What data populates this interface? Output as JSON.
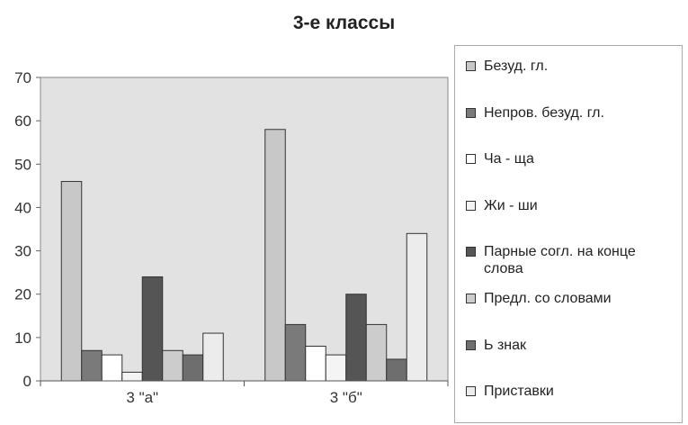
{
  "chart_data": {
    "type": "bar",
    "title": "3-е классы",
    "categories": [
      "3 \"а\"",
      "3 \"б\""
    ],
    "series": [
      {
        "name": "Безуд. гл.",
        "values": [
          46,
          58
        ],
        "color": "#c8c8c8"
      },
      {
        "name": "Непров. безуд. гл.",
        "values": [
          7,
          13
        ],
        "color": "#7a7a7a"
      },
      {
        "name": "Ча - ща",
        "values": [
          6,
          8
        ],
        "color": "#ffffff"
      },
      {
        "name": "Жи - ши",
        "values": [
          2,
          6
        ],
        "color": "#f4f4f4"
      },
      {
        "name": "Парные согл. на конце слова",
        "values": [
          24,
          20
        ],
        "color": "#555555"
      },
      {
        "name": "Предл. со словами",
        "values": [
          7,
          13
        ],
        "color": "#cccccc"
      },
      {
        "name": "Ь знак",
        "values": [
          6,
          5
        ],
        "color": "#6e6e6e"
      },
      {
        "name": "Приставки",
        "values": [
          11,
          34
        ],
        "color": "#ececec"
      }
    ],
    "ylim": [
      0,
      70
    ],
    "yticks": [
      0,
      10,
      20,
      30,
      40,
      50,
      60,
      70
    ],
    "grid": false,
    "plot_background": "#e2e2e2",
    "legend_position": "right"
  }
}
